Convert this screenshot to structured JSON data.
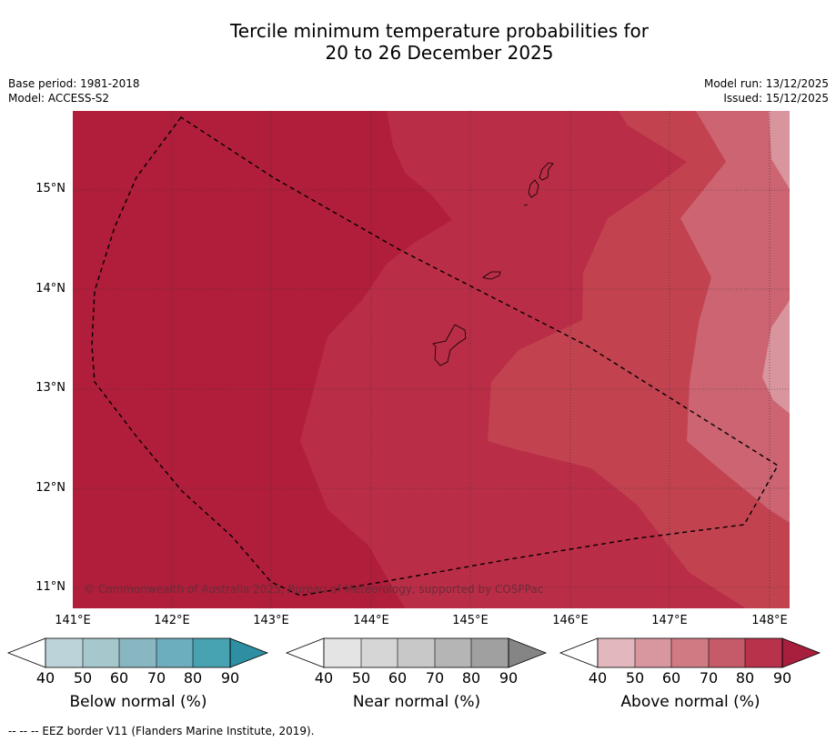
{
  "title_line1": "Tercile minimum temperature probabilities for",
  "title_line2": "20 to 26 December 2025",
  "meta": {
    "base_period": "Base period: 1981-2018",
    "model": "Model: ACCESS-S2",
    "model_run": "Model run: 13/12/2025",
    "issued": "Issued: 15/12/2025"
  },
  "map": {
    "lat_labels": [
      "15°N",
      "14°N",
      "13°N",
      "12°N",
      "11°N"
    ],
    "lon_labels": [
      "141°E",
      "142°E",
      "143°E",
      "144°E",
      "145°E",
      "146°E",
      "147°E",
      "148°E"
    ],
    "copyright": "© Commonwealth of Australia 2025, Bureau of Meteorology, supported by COSPPac",
    "zone_colors": [
      "#b01e3b",
      "#ba2d47",
      "#c24250",
      "#cc6472",
      "#d9959e"
    ]
  },
  "colorbars": [
    {
      "label": "Below normal (%)",
      "ticks": [
        "40",
        "50",
        "60",
        "70",
        "80",
        "90"
      ],
      "colors": [
        "#ffffff",
        "#bcd3da",
        "#a6c7cc",
        "#89b7c1",
        "#6daebe",
        "#47a2b2",
        "#2e8fa3"
      ]
    },
    {
      "label": "Near normal (%)",
      "ticks": [
        "40",
        "50",
        "60",
        "70",
        "80",
        "90"
      ],
      "colors": [
        "#ffffff",
        "#e4e4e4",
        "#d6d6d6",
        "#c8c8c8",
        "#b5b5b5",
        "#a0a0a0",
        "#858585"
      ]
    },
    {
      "label": "Above normal (%)",
      "ticks": [
        "40",
        "50",
        "60",
        "70",
        "80",
        "90"
      ],
      "colors": [
        "#ffffff",
        "#e2b7bd",
        "#d8969f",
        "#d07a83",
        "#c55a68",
        "#b8324b",
        "#a81f3e"
      ]
    }
  ],
  "footer": "--  --  -- EEZ border V11 (Flanders Marine Institute, 2019)."
}
